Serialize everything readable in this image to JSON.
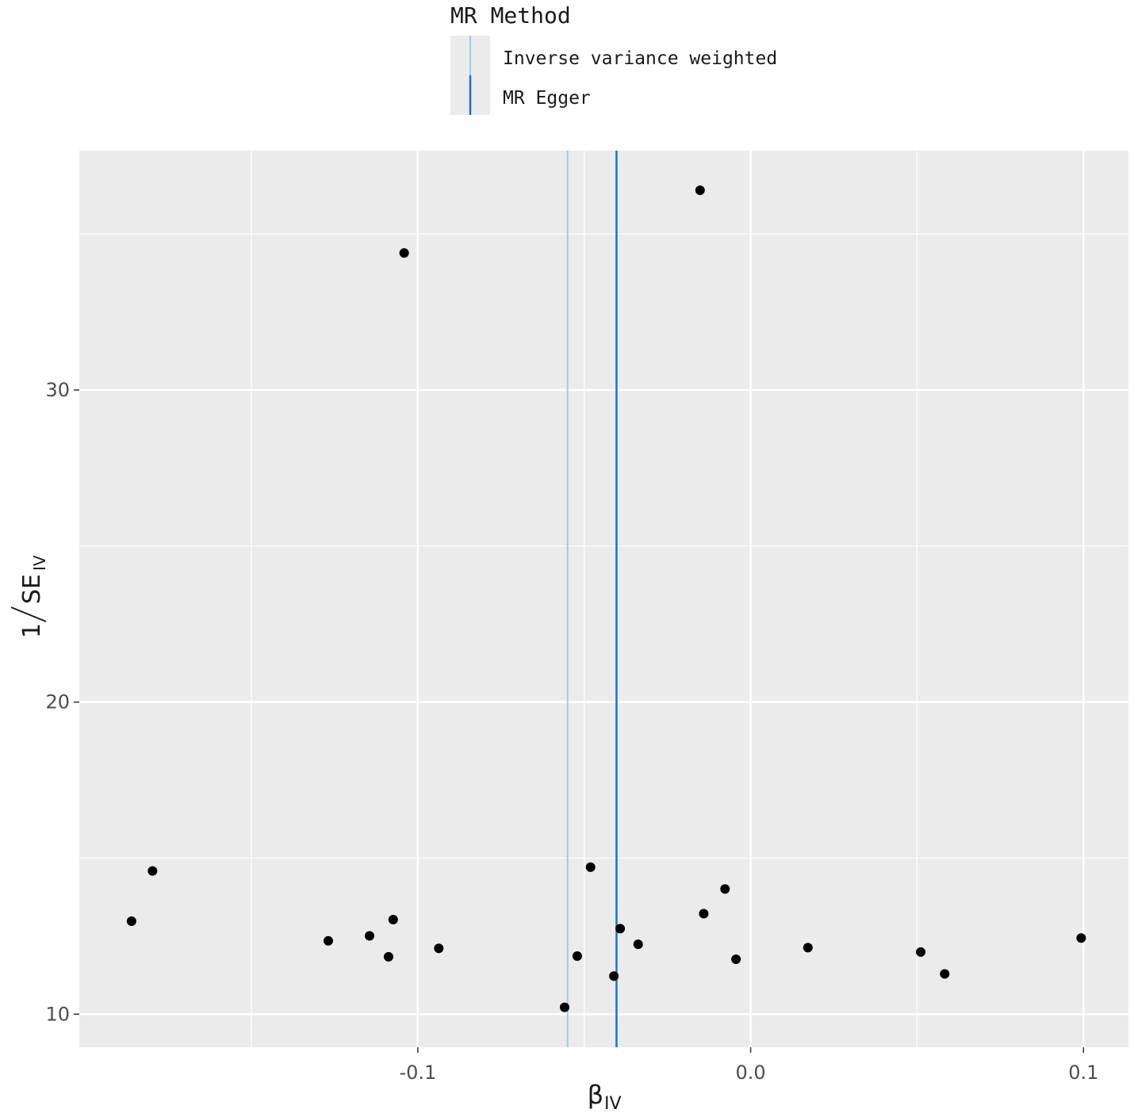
{
  "chart_data": {
    "type": "scatter",
    "title": "",
    "xlabel": "β",
    "xlabel_sub": "IV",
    "ylabel_numerator": "1",
    "ylabel_denominator": "SE",
    "ylabel_sub": "IV",
    "xlim": [
      -0.2017,
      0.1135
    ],
    "ylim": [
      8.94,
      37.67
    ],
    "x_ticks": [
      {
        "value": -0.1,
        "label": "-0.1"
      },
      {
        "value": 0.0,
        "label": "0.0"
      },
      {
        "value": 0.1,
        "label": "0.1"
      }
    ],
    "y_ticks": [
      {
        "value": 10,
        "label": "10"
      },
      {
        "value": 20,
        "label": "20"
      },
      {
        "value": 30,
        "label": "30"
      }
    ],
    "grid": true,
    "legend": {
      "title": "MR Method",
      "position": "top",
      "entries": [
        {
          "label": "Inverse variance weighted",
          "color": "#9ecae1"
        },
        {
          "label": "MR Egger",
          "color": "#2171b5"
        }
      ]
    },
    "vlines": [
      {
        "method": "Inverse variance weighted",
        "x": -0.055,
        "color": "#9ecae1"
      },
      {
        "method": "MR Egger",
        "x": -0.0403,
        "color": "#2171b5"
      }
    ],
    "points": [
      {
        "x": -0.186,
        "y": 12.98
      },
      {
        "x": -0.1797,
        "y": 14.59
      },
      {
        "x": -0.1269,
        "y": 12.35
      },
      {
        "x": -0.1145,
        "y": 12.51
      },
      {
        "x": -0.1088,
        "y": 11.84
      },
      {
        "x": -0.1074,
        "y": 13.03
      },
      {
        "x": -0.1041,
        "y": 34.39
      },
      {
        "x": -0.0937,
        "y": 12.11
      },
      {
        "x": -0.0559,
        "y": 10.22
      },
      {
        "x": -0.0521,
        "y": 11.86
      },
      {
        "x": -0.0481,
        "y": 14.71
      },
      {
        "x": -0.0411,
        "y": 11.22
      },
      {
        "x": -0.0392,
        "y": 12.74
      },
      {
        "x": -0.0338,
        "y": 12.24
      },
      {
        "x": -0.0152,
        "y": 36.4
      },
      {
        "x": -0.0141,
        "y": 13.22
      },
      {
        "x": -0.0077,
        "y": 14.01
      },
      {
        "x": -0.0044,
        "y": 11.76
      },
      {
        "x": 0.0172,
        "y": 12.13
      },
      {
        "x": 0.0511,
        "y": 11.99
      },
      {
        "x": 0.0583,
        "y": 11.29
      },
      {
        "x": 0.0993,
        "y": 12.44
      }
    ]
  },
  "colors": {
    "panel_background": "#ebebeb",
    "grid_major": "#ffffff",
    "point": "#000000"
  }
}
